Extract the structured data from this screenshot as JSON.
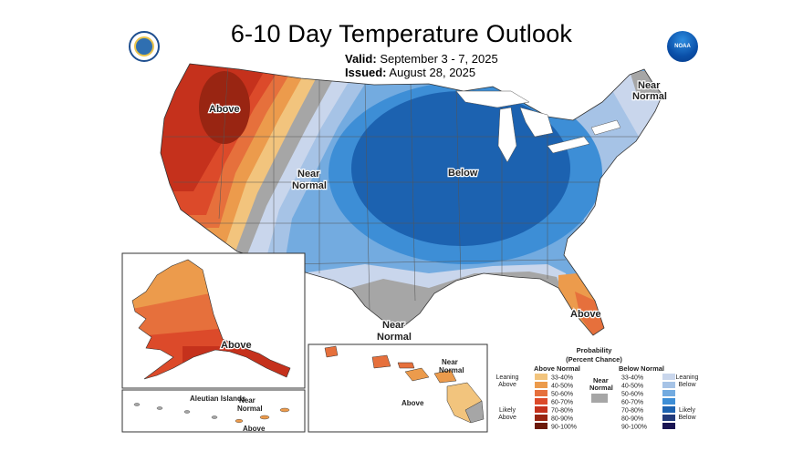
{
  "header": {
    "title": "6-10 Day Temperature Outlook",
    "valid_label": "Valid:",
    "valid_value": "September 3 - 7, 2025",
    "issued_label": "Issued:",
    "issued_value": "August 28, 2025"
  },
  "logos": {
    "left_icon": "commerce-seal-icon",
    "right_icon": "noaa-logo-icon",
    "noaa_text": "NOAA"
  },
  "map_labels": {
    "above_west": "Above",
    "near_normal_west_1": "Near",
    "near_normal_west_2": "Normal",
    "below_midwest": "Below",
    "near_normal_ne_1": "Near",
    "near_normal_ne_2": "Normal",
    "near_normal_south_1": "Near",
    "near_normal_south_2": "Normal",
    "above_florida": "Above",
    "above_alaska": "Above",
    "aleutian": "Aleutian Islands",
    "near_normal_aleutian_1": "Near",
    "near_normal_aleutian_2": "Normal",
    "above_aleutian": "Above",
    "near_normal_hawaii_1": "Near",
    "near_normal_hawaii_2": "Normal",
    "above_hawaii": "Above"
  },
  "legend": {
    "title_1": "Probability",
    "title_2": "(Percent Chance)",
    "above_head": "Above Normal",
    "below_head": "Below Normal",
    "near_head_1": "Near",
    "near_head_2": "Normal",
    "leaning_above_1": "Leaning",
    "leaning_above_2": "Above",
    "likely_above_1": "Likely",
    "likely_above_2": "Above",
    "leaning_below_1": "Leaning",
    "leaning_below_2": "Below",
    "likely_below_1": "Likely",
    "likely_below_2": "Below",
    "above": [
      {
        "label": "33-40%",
        "color": "#f2c47d"
      },
      {
        "label": "40-50%",
        "color": "#ec9b4c"
      },
      {
        "label": "50-60%",
        "color": "#e6703c"
      },
      {
        "label": "60-70%",
        "color": "#dc4a2a"
      },
      {
        "label": "70-80%",
        "color": "#c5311c"
      },
      {
        "label": "80-90%",
        "color": "#992512"
      },
      {
        "label": "90-100%",
        "color": "#6c1a0a"
      }
    ],
    "below": [
      {
        "label": "33-40%",
        "color": "#c9d6ec"
      },
      {
        "label": "40-50%",
        "color": "#a6c3e6"
      },
      {
        "label": "50-60%",
        "color": "#73abe0"
      },
      {
        "label": "60-70%",
        "color": "#3d8ed6"
      },
      {
        "label": "70-80%",
        "color": "#1c62b0"
      },
      {
        "label": "80-90%",
        "color": "#223a7a"
      },
      {
        "label": "90-100%",
        "color": "#1a1553"
      }
    ],
    "near_color": "#a6a6a6"
  }
}
